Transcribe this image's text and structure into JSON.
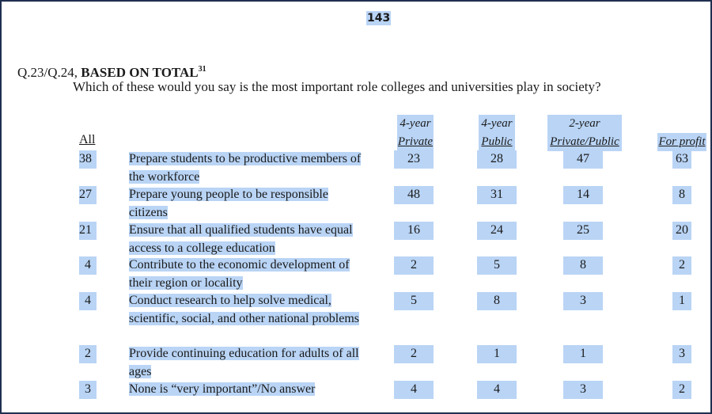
{
  "page_number": "143",
  "question": {
    "id_prefix": "Q.23/Q.24, ",
    "base": "BASED ON TOTAL",
    "footnote": "31",
    "text": "Which of these would you say is the most important role colleges and universities play in society?"
  },
  "table": {
    "all_header": "All",
    "columns": [
      {
        "line1": "4-year",
        "line2": "Private"
      },
      {
        "line1": "4-year",
        "line2": "Public"
      },
      {
        "line1": "2-year",
        "line2": "Private/Public"
      },
      {
        "line1": "",
        "line2": "For profit"
      }
    ],
    "rows": [
      {
        "all": "38",
        "label": "Prepare students to be productive members of the workforce",
        "values": [
          "23",
          "28",
          "47",
          "63"
        ]
      },
      {
        "all": "27",
        "label": "Prepare young people to be responsible citizens",
        "values": [
          "48",
          "31",
          "14",
          "8"
        ]
      },
      {
        "all": "21",
        "label": "Ensure that all qualified students have equal access to a college education",
        "values": [
          "16",
          "24",
          "25",
          "20"
        ]
      },
      {
        "all": "4",
        "label": "Contribute to the economic development of their region or locality",
        "values": [
          "2",
          "5",
          "8",
          "2"
        ]
      },
      {
        "all": "4",
        "label": "Conduct research to help solve medical, scientific, social, and other national problems",
        "values": [
          "5",
          "8",
          "3",
          "1"
        ]
      },
      {
        "all": "2",
        "label": "Provide continuing education for adults of all ages",
        "values": [
          "2",
          "1",
          "1",
          "3"
        ]
      },
      {
        "all": "3",
        "label": "None is “very important”/No answer",
        "values": [
          "4",
          "4",
          "3",
          "2"
        ]
      }
    ]
  }
}
